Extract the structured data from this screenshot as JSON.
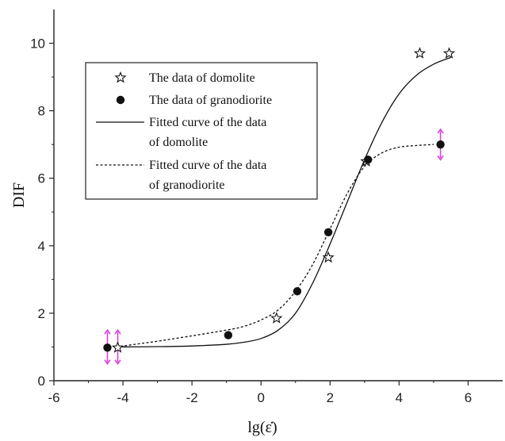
{
  "chart_data": {
    "type": "scatter",
    "xlabel": "lg(ε̇)",
    "ylabel": "DIF",
    "xlim": [
      -6,
      7
    ],
    "ylim": [
      0,
      11
    ],
    "xticks": [
      -6,
      -4,
      -2,
      0,
      2,
      4,
      6
    ],
    "yticks": [
      0,
      2,
      4,
      6,
      8,
      10
    ],
    "grid": false,
    "legend_position": "upper-left",
    "series": [
      {
        "name": "The data of  domolite",
        "kind": "points",
        "marker": "star",
        "x": [
          -4.15,
          0.45,
          1.95,
          3.05,
          4.6,
          5.45
        ],
        "y": [
          0.98,
          1.85,
          3.65,
          6.5,
          9.7,
          9.7
        ]
      },
      {
        "name": "The data of granodiorite",
        "kind": "points",
        "marker": "filled-circle",
        "x": [
          -4.45,
          -0.95,
          1.05,
          1.95,
          3.1,
          5.2
        ],
        "y": [
          0.98,
          1.35,
          2.65,
          4.4,
          6.55,
          7.0
        ]
      },
      {
        "name": "Fitted curve of the data of domolite",
        "kind": "line",
        "style": "solid",
        "x": [
          -4.1,
          -3,
          -2,
          -1,
          -0.5,
          0,
          0.5,
          1,
          1.5,
          2,
          2.5,
          3,
          3.5,
          4,
          4.5,
          5,
          5.5
        ],
        "y": [
          1.0,
          1.01,
          1.03,
          1.08,
          1.14,
          1.25,
          1.5,
          2.0,
          2.9,
          4.05,
          5.3,
          6.55,
          7.65,
          8.5,
          9.05,
          9.38,
          9.58
        ]
      },
      {
        "name": "Fitted curve of the data of granodiorite",
        "kind": "line",
        "style": "dotted",
        "x": [
          -4.2,
          -3.5,
          -3,
          -2,
          -1,
          -0.5,
          0,
          0.5,
          1,
          1.5,
          2,
          2.5,
          3,
          3.5,
          4,
          4.5,
          5
        ],
        "y": [
          1.0,
          1.1,
          1.17,
          1.33,
          1.5,
          1.61,
          1.8,
          2.1,
          2.65,
          3.45,
          4.5,
          5.55,
          6.35,
          6.75,
          6.92,
          6.97,
          7.0
        ]
      }
    ],
    "error_bars": [
      {
        "x": -4.45,
        "y": 0.98,
        "low": 0.5,
        "high": 1.5
      },
      {
        "x": -4.15,
        "y": 0.98,
        "low": 0.5,
        "high": 1.5
      },
      {
        "x": 5.2,
        "y": 7.0,
        "low": 6.55,
        "high": 7.45
      }
    ],
    "legend": {
      "entries": [
        {
          "lines": [
            "The data of  domolite"
          ],
          "symbol": "star"
        },
        {
          "lines": [
            "The data of granodiorite"
          ],
          "symbol": "filled-circle"
        },
        {
          "lines": [
            "Fitted curve of the data",
            "of domolite"
          ],
          "symbol": "solid-line"
        },
        {
          "lines": [
            "Fitted curve of the data",
            "of granodiorite"
          ],
          "symbol": "dotted-line"
        }
      ]
    },
    "colors": {
      "axis": "#222222",
      "series": "#111111",
      "error_bar": "#e040e0"
    }
  }
}
